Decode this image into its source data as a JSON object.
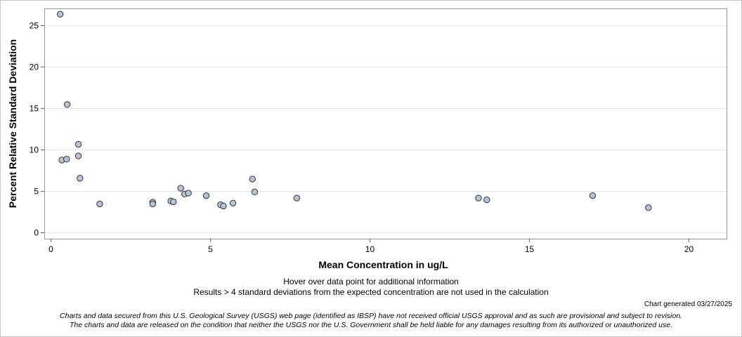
{
  "chart_data": {
    "type": "scatter",
    "title": "",
    "xlabel": "Mean Concentration in ug/L",
    "ylabel": "Percent Relative Standard Deviation",
    "xlim": [
      -0.2,
      21.2
    ],
    "ylim": [
      -0.8,
      27
    ],
    "xticks": [
      0,
      5,
      10,
      15,
      20
    ],
    "yticks": [
      0,
      5,
      10,
      15,
      20,
      25
    ],
    "grid": "horizontal",
    "legend": "none",
    "marker_fill": "#b4c4d8",
    "marker_stroke": "#333333",
    "points": [
      {
        "x": 0.3,
        "y": 26.3
      },
      {
        "x": 0.35,
        "y": 8.7
      },
      {
        "x": 0.5,
        "y": 8.8
      },
      {
        "x": 0.52,
        "y": 15.4
      },
      {
        "x": 0.87,
        "y": 10.6
      },
      {
        "x": 0.87,
        "y": 9.2
      },
      {
        "x": 0.92,
        "y": 6.5
      },
      {
        "x": 1.54,
        "y": 3.4
      },
      {
        "x": 3.2,
        "y": 3.6
      },
      {
        "x": 3.2,
        "y": 3.4
      },
      {
        "x": 3.77,
        "y": 3.75
      },
      {
        "x": 3.85,
        "y": 3.65
      },
      {
        "x": 4.08,
        "y": 5.3
      },
      {
        "x": 4.2,
        "y": 4.6
      },
      {
        "x": 4.32,
        "y": 4.7
      },
      {
        "x": 4.88,
        "y": 4.4
      },
      {
        "x": 5.33,
        "y": 3.3
      },
      {
        "x": 5.42,
        "y": 3.15
      },
      {
        "x": 5.72,
        "y": 3.5
      },
      {
        "x": 6.33,
        "y": 6.4
      },
      {
        "x": 6.4,
        "y": 4.85
      },
      {
        "x": 7.72,
        "y": 4.1
      },
      {
        "x": 13.42,
        "y": 4.1
      },
      {
        "x": 13.68,
        "y": 3.9
      },
      {
        "x": 17.0,
        "y": 4.4
      },
      {
        "x": 18.75,
        "y": 2.95
      }
    ]
  },
  "notes": {
    "hover": "Hover over data point for additional information",
    "results": "Results > 4 standard deviations from the expected concentration are not used in the calculation",
    "generated": "Chart generated 03/27/2025",
    "disclaimer_1": "Charts and data secured from this U.S. Geological Survey (USGS) web page (identified as IBSP) have not received official USGS approval and as such are provisional and subject to revision.",
    "disclaimer_2": "The charts and data are released on the condition that neither the USGS nor the U.S. Government shall be held liable for any damages resulting from its authorized or unauthorized use."
  }
}
